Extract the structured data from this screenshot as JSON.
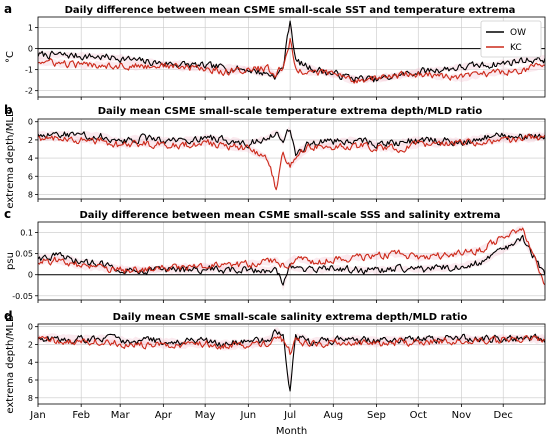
{
  "chart_data": [
    {
      "type": "line",
      "letter": "a",
      "title": "Daily difference between mean CSME small-scale SST and temperature extrema",
      "ylabel": "°C",
      "ylim": [
        -2.3,
        1.5
      ],
      "yticks": [
        -2,
        -1,
        0,
        1
      ],
      "inverted": false,
      "zero_line": true,
      "legend": {
        "placement": "top-right",
        "entries": [
          "OW",
          "KC"
        ]
      },
      "x_key": [
        1,
        15,
        32,
        46,
        60,
        74,
        91,
        105,
        121,
        135,
        152,
        166,
        172,
        177,
        182,
        186,
        196,
        213,
        227,
        244,
        258,
        274,
        288,
        305,
        319,
        335,
        349,
        365
      ],
      "series": [
        {
          "name": "OW",
          "color": "#000000",
          "values": [
            -0.3,
            -0.3,
            -0.35,
            -0.4,
            -0.45,
            -0.6,
            -0.7,
            -0.75,
            -0.85,
            -0.9,
            -1.0,
            -1.2,
            -1.3,
            -0.9,
            1.4,
            -0.6,
            -0.9,
            -1.2,
            -1.4,
            -1.5,
            -1.3,
            -1.1,
            -1.0,
            -0.9,
            -0.8,
            -0.7,
            -0.55,
            -0.5
          ]
        },
        {
          "name": "KC",
          "color": "#cc2a1a",
          "values": [
            -0.6,
            -0.7,
            -0.8,
            -0.75,
            -0.8,
            -0.85,
            -0.8,
            -0.9,
            -0.95,
            -1.1,
            -1.0,
            -0.95,
            -1.3,
            -0.8,
            0.4,
            -1.0,
            -1.1,
            -1.2,
            -1.5,
            -1.4,
            -1.3,
            -1.2,
            -1.3,
            -1.4,
            -1.2,
            -1.1,
            -1.0,
            -0.8
          ]
        }
      ]
    },
    {
      "type": "line",
      "letter": "b",
      "title": "Daily mean CSME small-scale temperature extrema depth/MLD ratio",
      "ylabel": "extrema depth/MLD",
      "ylim": [
        8.5,
        -0.3
      ],
      "yticks": [
        0,
        2,
        4,
        6,
        8
      ],
      "inverted": true,
      "zero_line": false,
      "x_key": [
        1,
        15,
        32,
        46,
        60,
        74,
        91,
        105,
        121,
        135,
        152,
        166,
        172,
        177,
        182,
        186,
        196,
        213,
        227,
        244,
        258,
        274,
        288,
        305,
        319,
        335,
        349,
        365
      ],
      "series": [
        {
          "name": "OW",
          "color": "#000000",
          "values": [
            1.5,
            1.4,
            1.5,
            1.6,
            2.2,
            1.8,
            2.0,
            2.1,
            1.8,
            2.0,
            2.4,
            1.8,
            1.0,
            2.2,
            0.5,
            3.5,
            2.4,
            2.2,
            2.0,
            2.4,
            2.3,
            2.0,
            2.1,
            2.2,
            1.8,
            1.6,
            1.7,
            1.5
          ]
        },
        {
          "name": "KC",
          "color": "#cc2a1a",
          "values": [
            1.8,
            1.9,
            2.0,
            2.1,
            2.6,
            2.4,
            2.5,
            2.6,
            2.3,
            2.6,
            3.0,
            4.0,
            7.5,
            3.5,
            5.0,
            4.0,
            2.8,
            2.7,
            2.6,
            2.8,
            3.0,
            2.5,
            2.4,
            2.3,
            2.2,
            2.0,
            1.9,
            1.7
          ]
        }
      ]
    },
    {
      "type": "line",
      "letter": "c",
      "title": "Daily difference between mean CSME small-scale SSS and salinity extrema",
      "ylabel": "psu",
      "ylim": [
        -0.06,
        0.125
      ],
      "yticks": [
        -0.05,
        0.0,
        0.05,
        0.1
      ],
      "inverted": false,
      "zero_line": true,
      "x_key": [
        1,
        15,
        32,
        46,
        60,
        74,
        91,
        105,
        121,
        135,
        152,
        166,
        172,
        177,
        182,
        186,
        196,
        213,
        227,
        244,
        258,
        274,
        288,
        305,
        319,
        335,
        349,
        365
      ],
      "series": [
        {
          "name": "OW",
          "color": "#000000",
          "values": [
            0.04,
            0.045,
            0.03,
            0.025,
            0.015,
            0.01,
            0.012,
            0.01,
            0.015,
            0.01,
            0.012,
            0.01,
            0.02,
            -0.03,
            0.02,
            0.015,
            0.01,
            0.015,
            0.012,
            0.01,
            0.015,
            0.012,
            0.015,
            0.02,
            0.03,
            0.06,
            0.085,
            0.0
          ]
        },
        {
          "name": "KC",
          "color": "#cc2a1a",
          "values": [
            0.03,
            0.035,
            0.02,
            0.015,
            0.01,
            0.012,
            0.015,
            0.018,
            0.02,
            0.02,
            0.025,
            0.03,
            0.035,
            0.02,
            0.03,
            0.04,
            0.03,
            0.035,
            0.04,
            0.045,
            0.05,
            0.04,
            0.045,
            0.05,
            0.06,
            0.09,
            0.11,
            -0.03
          ]
        }
      ]
    },
    {
      "type": "line",
      "letter": "d",
      "title": "Daily mean CSME small-scale salinity extrema depth/MLD ratio",
      "ylabel": "extrema depth/MLD",
      "ylim": [
        8.7,
        -0.3
      ],
      "yticks": [
        0,
        2,
        4,
        6,
        8
      ],
      "inverted": true,
      "zero_line": false,
      "x_key": [
        1,
        15,
        32,
        46,
        60,
        74,
        91,
        105,
        121,
        135,
        152,
        166,
        172,
        177,
        182,
        186,
        196,
        213,
        227,
        244,
        258,
        274,
        288,
        305,
        319,
        335,
        349,
        365
      ],
      "series": [
        {
          "name": "OW",
          "color": "#000000",
          "values": [
            1.3,
            1.2,
            1.4,
            1.3,
            1.5,
            1.6,
            1.6,
            1.8,
            1.6,
            1.9,
            1.8,
            1.5,
            0.4,
            1.2,
            7.2,
            1.0,
            1.6,
            1.5,
            1.4,
            1.6,
            1.4,
            1.5,
            1.4,
            1.3,
            1.4,
            1.3,
            1.2,
            1.3
          ]
        },
        {
          "name": "KC",
          "color": "#cc2a1a",
          "values": [
            1.5,
            1.6,
            1.7,
            1.6,
            1.9,
            2.0,
            2.0,
            2.1,
            1.9,
            2.2,
            2.1,
            1.8,
            1.2,
            1.6,
            3.0,
            1.4,
            2.0,
            1.8,
            1.7,
            1.9,
            1.7,
            1.8,
            1.6,
            1.5,
            1.6,
            1.5,
            1.4,
            1.5
          ]
        }
      ]
    }
  ],
  "xaxis": {
    "label": "Month",
    "range": [
      1,
      365
    ],
    "ticks": [
      {
        "day": 1,
        "label": "Jan"
      },
      {
        "day": 32,
        "label": "Feb"
      },
      {
        "day": 60,
        "label": "Mar"
      },
      {
        "day": 91,
        "label": "Apr"
      },
      {
        "day": 121,
        "label": "May"
      },
      {
        "day": 152,
        "label": "Jun"
      },
      {
        "day": 182,
        "label": "Jul"
      },
      {
        "day": 213,
        "label": "Aug"
      },
      {
        "day": 244,
        "label": "Sep"
      },
      {
        "day": 274,
        "label": "Oct"
      },
      {
        "day": 305,
        "label": "Nov"
      },
      {
        "day": 335,
        "label": "Dec"
      }
    ]
  },
  "grid": true,
  "colors": {
    "OW": "#000000",
    "KC": "#cc2a1a",
    "band": "#f3c4d0",
    "grid": "#c8c8c8"
  }
}
